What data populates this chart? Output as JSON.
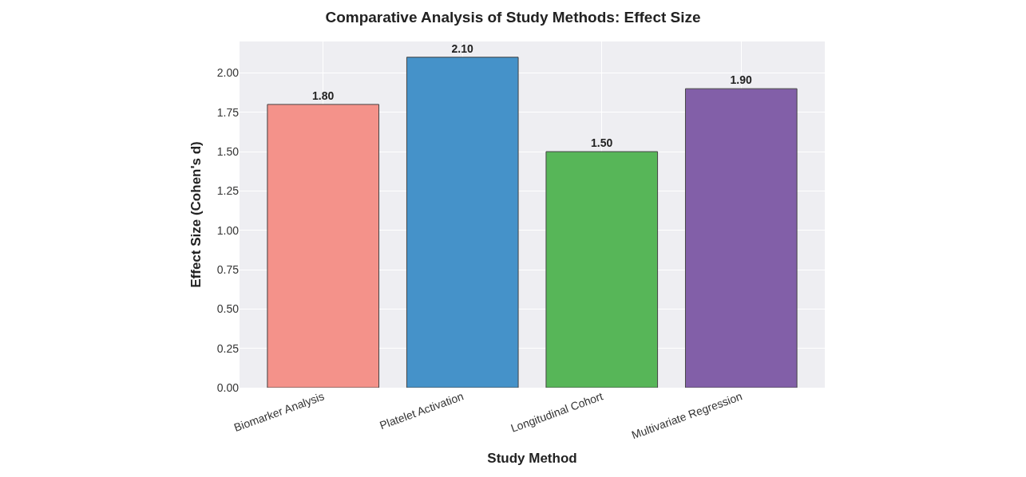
{
  "chart_data": {
    "type": "bar",
    "title": "Comparative Analysis of Study Methods: Effect Size",
    "xlabel": "Study Method",
    "ylabel": "Effect Size (Cohen's d)",
    "categories": [
      "Biomarker Analysis",
      "Platelet Activation",
      "Longitudinal Cohort",
      "Multivariate Regression"
    ],
    "values": [
      1.8,
      2.1,
      1.5,
      1.9
    ],
    "colors": [
      "#f4928a",
      "#4592c9",
      "#57b658",
      "#825fa8"
    ],
    "value_labels": [
      "1.80",
      "2.10",
      "1.50",
      "1.90"
    ],
    "ylim": [
      0,
      2.2
    ],
    "yticks": [
      {
        "value": 0,
        "label": "0.00"
      },
      {
        "value": 0.25,
        "label": "0.25"
      },
      {
        "value": 0.5,
        "label": "0.50"
      },
      {
        "value": 0.75,
        "label": "0.75"
      },
      {
        "value": 1,
        "label": "1.00"
      },
      {
        "value": 1.25,
        "label": "1.25"
      },
      {
        "value": 1.5,
        "label": "1.50"
      },
      {
        "value": 1.75,
        "label": "1.75"
      },
      {
        "value": 2,
        "label": "2.00"
      }
    ],
    "grid": true
  }
}
